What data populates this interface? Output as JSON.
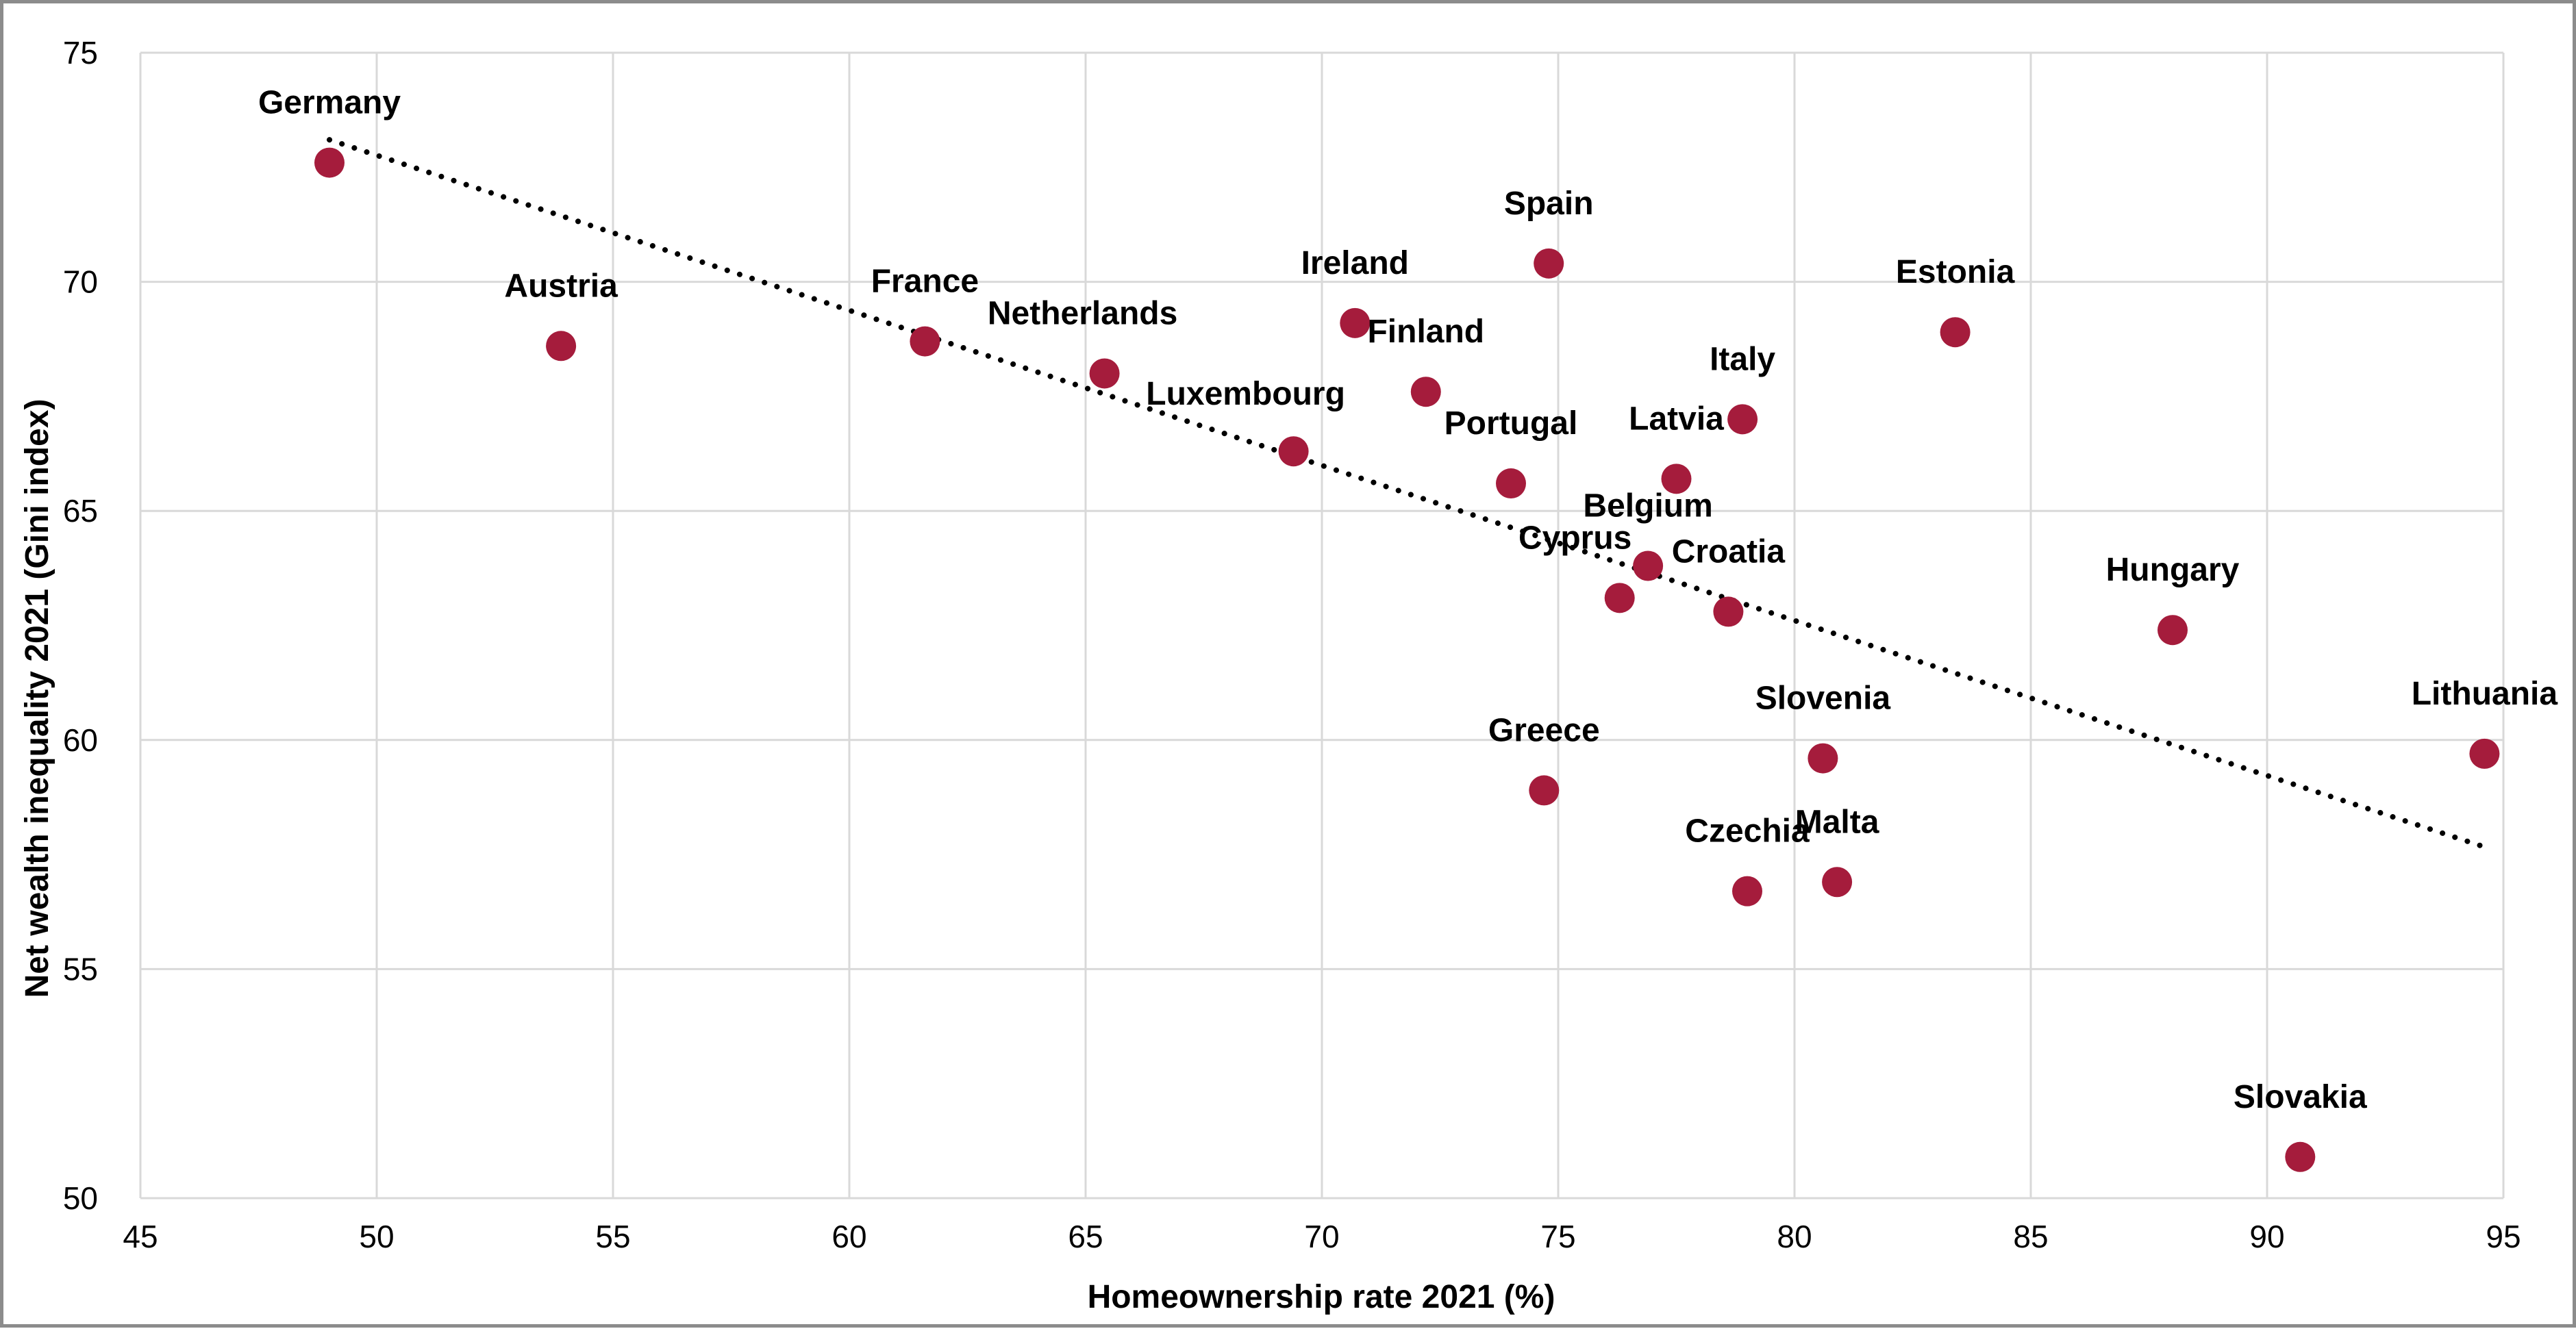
{
  "chart_data": {
    "type": "scatter",
    "xlabel": "Homeownership rate 2021 (%)",
    "ylabel": "Net wealth inequality  2021 (Gini index)",
    "xlim": [
      45,
      95
    ],
    "ylim": [
      50,
      75
    ],
    "x_ticks": [
      45,
      50,
      55,
      60,
      65,
      70,
      75,
      80,
      85,
      90,
      95
    ],
    "y_ticks": [
      50,
      55,
      60,
      65,
      70,
      75
    ],
    "grid": true,
    "legend": "none",
    "marker_color": "#a51c3c",
    "trendline": {
      "style": "dotted",
      "color": "#000000",
      "x_start": 49.0,
      "y_start": 73.1,
      "x_end": 94.5,
      "y_end": 57.7
    },
    "points": [
      {
        "label": "Germany",
        "x": 49.0,
        "y": 72.6
      },
      {
        "label": "Austria",
        "x": 53.9,
        "y": 68.6
      },
      {
        "label": "France",
        "x": 61.6,
        "y": 68.7
      },
      {
        "label": "Netherlands",
        "x": 65.4,
        "y": 68.0
      },
      {
        "label": "Luxembourg",
        "x": 69.4,
        "y": 66.3
      },
      {
        "label": "Ireland",
        "x": 70.7,
        "y": 69.1
      },
      {
        "label": "Finland",
        "x": 72.2,
        "y": 67.6
      },
      {
        "label": "Portugal",
        "x": 74.0,
        "y": 65.6
      },
      {
        "label": "Spain",
        "x": 74.8,
        "y": 70.4
      },
      {
        "label": "Greece",
        "x": 74.7,
        "y": 58.9
      },
      {
        "label": "Cyprus",
        "x": 76.3,
        "y": 63.1
      },
      {
        "label": "Belgium",
        "x": 76.9,
        "y": 63.8
      },
      {
        "label": "Latvia",
        "x": 77.5,
        "y": 65.7
      },
      {
        "label": "Croatia",
        "x": 78.6,
        "y": 62.8
      },
      {
        "label": "Italy",
        "x": 78.9,
        "y": 67.0
      },
      {
        "label": "Czechia",
        "x": 79.0,
        "y": 56.7
      },
      {
        "label": "Slovenia",
        "x": 80.6,
        "y": 59.6
      },
      {
        "label": "Malta",
        "x": 80.9,
        "y": 56.9
      },
      {
        "label": "Estonia",
        "x": 83.4,
        "y": 68.9
      },
      {
        "label": "Hungary",
        "x": 88.0,
        "y": 62.4
      },
      {
        "label": "Slovakia",
        "x": 90.7,
        "y": 50.9
      },
      {
        "label": "Lithuania",
        "x": 94.6,
        "y": 59.7
      }
    ]
  }
}
